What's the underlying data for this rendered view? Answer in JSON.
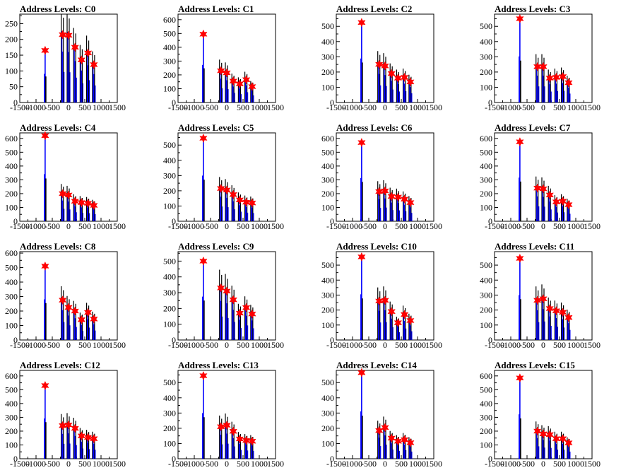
{
  "chart_data": [
    {
      "type": "bar",
      "title": "Address Levels: C0",
      "xlim": [
        -1500,
        1500
      ],
      "xticks": [
        -1500,
        -1000,
        -500,
        0,
        500,
        1000,
        1500
      ],
      "ylim": [
        0,
        280
      ],
      "yticks": [
        0,
        50,
        100,
        150,
        200,
        250
      ],
      "peaks": [
        {
          "x": -720,
          "y": 165
        },
        {
          "x": -180,
          "y": 215
        },
        {
          "x": 0,
          "y": 213
        },
        {
          "x": 200,
          "y": 175
        },
        {
          "x": 400,
          "y": 135
        },
        {
          "x": 600,
          "y": 157
        },
        {
          "x": 780,
          "y": 120
        }
      ]
    },
    {
      "type": "bar",
      "title": "Address Levels: C1",
      "xlim": [
        -1500,
        1500
      ],
      "xticks": [
        -1500,
        -1000,
        -500,
        0,
        500,
        1000,
        1500
      ],
      "ylim": [
        0,
        640
      ],
      "yticks": [
        0,
        100,
        200,
        300,
        400,
        500,
        600
      ],
      "peaks": [
        {
          "x": -720,
          "y": 495
        },
        {
          "x": -180,
          "y": 230
        },
        {
          "x": 0,
          "y": 215
        },
        {
          "x": 200,
          "y": 155
        },
        {
          "x": 400,
          "y": 135
        },
        {
          "x": 600,
          "y": 165
        },
        {
          "x": 780,
          "y": 115
        }
      ]
    },
    {
      "type": "bar",
      "title": "Address Levels: C2",
      "xlim": [
        -1500,
        1500
      ],
      "xticks": [
        -1500,
        -1000,
        -500,
        0,
        500,
        1000,
        1500
      ],
      "ylim": [
        0,
        580
      ],
      "yticks": [
        0,
        100,
        200,
        300,
        400,
        500
      ],
      "peaks": [
        {
          "x": -720,
          "y": 525
        },
        {
          "x": -180,
          "y": 250
        },
        {
          "x": 0,
          "y": 240
        },
        {
          "x": 200,
          "y": 190
        },
        {
          "x": 400,
          "y": 160
        },
        {
          "x": 600,
          "y": 165
        },
        {
          "x": 780,
          "y": 135
        }
      ]
    },
    {
      "type": "bar",
      "title": "Address Levels: C3",
      "xlim": [
        -1500,
        1500
      ],
      "xticks": [
        -1500,
        -1000,
        -500,
        0,
        500,
        1000,
        1500
      ],
      "ylim": [
        0,
        580
      ],
      "yticks": [
        0,
        100,
        200,
        300,
        400,
        500
      ],
      "peaks": [
        {
          "x": -720,
          "y": 550
        },
        {
          "x": -180,
          "y": 235
        },
        {
          "x": 0,
          "y": 235
        },
        {
          "x": 200,
          "y": 160
        },
        {
          "x": 400,
          "y": 165
        },
        {
          "x": 600,
          "y": 170
        },
        {
          "x": 780,
          "y": 130
        }
      ]
    },
    {
      "type": "bar",
      "title": "Address Levels: C4",
      "xlim": [
        -1500,
        1500
      ],
      "xticks": [
        -1500,
        -1000,
        -500,
        0,
        500,
        1000,
        1500
      ],
      "ylim": [
        0,
        640
      ],
      "yticks": [
        0,
        100,
        200,
        300,
        400,
        500,
        600
      ],
      "peaks": [
        {
          "x": -720,
          "y": 620
        },
        {
          "x": -180,
          "y": 200
        },
        {
          "x": 0,
          "y": 190
        },
        {
          "x": 200,
          "y": 145
        },
        {
          "x": 400,
          "y": 135
        },
        {
          "x": 600,
          "y": 130
        },
        {
          "x": 780,
          "y": 115
        }
      ]
    },
    {
      "type": "bar",
      "title": "Address Levels: C5",
      "xlim": [
        -1500,
        1500
      ],
      "xticks": [
        -1500,
        -1000,
        -500,
        0,
        500,
        1000,
        1500
      ],
      "ylim": [
        0,
        580
      ],
      "yticks": [
        0,
        100,
        200,
        300,
        400,
        500
      ],
      "peaks": [
        {
          "x": -720,
          "y": 545
        },
        {
          "x": -180,
          "y": 215
        },
        {
          "x": 0,
          "y": 205
        },
        {
          "x": 200,
          "y": 175
        },
        {
          "x": 400,
          "y": 140
        },
        {
          "x": 600,
          "y": 125
        },
        {
          "x": 780,
          "y": 120
        }
      ]
    },
    {
      "type": "bar",
      "title": "Address Levels: C6",
      "xlim": [
        -1500,
        1500
      ],
      "xticks": [
        -1500,
        -1000,
        -500,
        0,
        500,
        1000,
        1500
      ],
      "ylim": [
        0,
        640
      ],
      "yticks": [
        0,
        100,
        200,
        300,
        400,
        500,
        600
      ],
      "peaks": [
        {
          "x": -720,
          "y": 570
        },
        {
          "x": -180,
          "y": 215
        },
        {
          "x": 0,
          "y": 220
        },
        {
          "x": 200,
          "y": 180
        },
        {
          "x": 400,
          "y": 175
        },
        {
          "x": 600,
          "y": 160
        },
        {
          "x": 780,
          "y": 135
        }
      ]
    },
    {
      "type": "bar",
      "title": "Address Levels: C7",
      "xlim": [
        -1500,
        1500
      ],
      "xticks": [
        -1500,
        -1000,
        -500,
        0,
        500,
        1000,
        1500
      ],
      "ylim": [
        0,
        640
      ],
      "yticks": [
        0,
        100,
        200,
        300,
        400,
        500,
        600
      ],
      "peaks": [
        {
          "x": -720,
          "y": 575
        },
        {
          "x": -180,
          "y": 240
        },
        {
          "x": 0,
          "y": 235
        },
        {
          "x": 200,
          "y": 190
        },
        {
          "x": 400,
          "y": 140
        },
        {
          "x": 600,
          "y": 145
        },
        {
          "x": 780,
          "y": 120
        }
      ]
    },
    {
      "type": "bar",
      "title": "Address Levels: C8",
      "xlim": [
        -1500,
        1500
      ],
      "xticks": [
        -1500,
        -1000,
        -500,
        0,
        500,
        1000,
        1500
      ],
      "ylim": [
        0,
        610
      ],
      "yticks": [
        0,
        100,
        200,
        300,
        400,
        500,
        600
      ],
      "peaks": [
        {
          "x": -720,
          "y": 510
        },
        {
          "x": -180,
          "y": 275
        },
        {
          "x": 0,
          "y": 225
        },
        {
          "x": 200,
          "y": 200
        },
        {
          "x": 400,
          "y": 140
        },
        {
          "x": 600,
          "y": 190
        },
        {
          "x": 780,
          "y": 145
        }
      ]
    },
    {
      "type": "bar",
      "title": "Address Levels: C9",
      "xlim": [
        -1500,
        1500
      ],
      "xticks": [
        -1500,
        -1000,
        -500,
        0,
        500,
        1000,
        1500
      ],
      "ylim": [
        0,
        560
      ],
      "yticks": [
        0,
        100,
        200,
        300,
        400,
        500
      ],
      "peaks": [
        {
          "x": -720,
          "y": 500
        },
        {
          "x": -180,
          "y": 330
        },
        {
          "x": 0,
          "y": 310
        },
        {
          "x": 200,
          "y": 255
        },
        {
          "x": 400,
          "y": 170
        },
        {
          "x": 600,
          "y": 205
        },
        {
          "x": 780,
          "y": 165
        }
      ]
    },
    {
      "type": "bar",
      "title": "Address Levels: C10",
      "xlim": [
        -1500,
        1500
      ],
      "xticks": [
        -1500,
        -1000,
        -500,
        0,
        500,
        1000,
        1500
      ],
      "ylim": [
        0,
        590
      ],
      "yticks": [
        0,
        100,
        200,
        300,
        400,
        500
      ],
      "peaks": [
        {
          "x": -720,
          "y": 555
        },
        {
          "x": -180,
          "y": 260
        },
        {
          "x": 0,
          "y": 265
        },
        {
          "x": 200,
          "y": 190
        },
        {
          "x": 400,
          "y": 115
        },
        {
          "x": 600,
          "y": 170
        },
        {
          "x": 780,
          "y": 130
        }
      ]
    },
    {
      "type": "bar",
      "title": "Address Levels: C11",
      "xlim": [
        -1500,
        1500
      ],
      "xticks": [
        -1500,
        -1000,
        -500,
        0,
        500,
        1000,
        1500
      ],
      "ylim": [
        0,
        590
      ],
      "yticks": [
        0,
        100,
        200,
        300,
        400,
        500
      ],
      "peaks": [
        {
          "x": -720,
          "y": 545
        },
        {
          "x": -180,
          "y": 265
        },
        {
          "x": 0,
          "y": 275
        },
        {
          "x": 200,
          "y": 210
        },
        {
          "x": 400,
          "y": 195
        },
        {
          "x": 600,
          "y": 185
        },
        {
          "x": 780,
          "y": 150
        }
      ]
    },
    {
      "type": "bar",
      "title": "Address Levels: C12",
      "xlim": [
        -1500,
        1500
      ],
      "xticks": [
        -1500,
        -1000,
        -500,
        0,
        500,
        1000,
        1500
      ],
      "ylim": [
        0,
        640
      ],
      "yticks": [
        0,
        100,
        200,
        300,
        400,
        500,
        600
      ],
      "peaks": [
        {
          "x": -720,
          "y": 530
        },
        {
          "x": -180,
          "y": 240
        },
        {
          "x": 0,
          "y": 245
        },
        {
          "x": 200,
          "y": 220
        },
        {
          "x": 400,
          "y": 165
        },
        {
          "x": 600,
          "y": 155
        },
        {
          "x": 780,
          "y": 145
        }
      ]
    },
    {
      "type": "bar",
      "title": "Address Levels: C13",
      "xlim": [
        -1500,
        1500
      ],
      "xticks": [
        -1500,
        -1000,
        -500,
        0,
        500,
        1000,
        1500
      ],
      "ylim": [
        0,
        580
      ],
      "yticks": [
        0,
        100,
        200,
        300,
        400,
        500
      ],
      "peaks": [
        {
          "x": -720,
          "y": 545
        },
        {
          "x": -180,
          "y": 210
        },
        {
          "x": 0,
          "y": 220
        },
        {
          "x": 200,
          "y": 180
        },
        {
          "x": 400,
          "y": 130
        },
        {
          "x": 600,
          "y": 120
        },
        {
          "x": 780,
          "y": 115
        }
      ]
    },
    {
      "type": "bar",
      "title": "Address Levels: C14",
      "xlim": [
        -1500,
        1500
      ],
      "xticks": [
        -1500,
        -1000,
        -500,
        0,
        500,
        1000,
        1500
      ],
      "ylim": [
        0,
        580
      ],
      "yticks": [
        0,
        100,
        200,
        300,
        400,
        500
      ],
      "peaks": [
        {
          "x": -720,
          "y": 565
        },
        {
          "x": -180,
          "y": 185
        },
        {
          "x": 0,
          "y": 205
        },
        {
          "x": 200,
          "y": 135
        },
        {
          "x": 400,
          "y": 115
        },
        {
          "x": 600,
          "y": 125
        },
        {
          "x": 780,
          "y": 105
        }
      ]
    },
    {
      "type": "bar",
      "title": "Address Levels: C15",
      "xlim": [
        -1500,
        1500
      ],
      "xticks": [
        -1500,
        -1000,
        -500,
        0,
        500,
        1000,
        1500
      ],
      "ylim": [
        0,
        640
      ],
      "yticks": [
        0,
        100,
        200,
        300,
        400,
        500,
        600
      ],
      "peaks": [
        {
          "x": -720,
          "y": 585
        },
        {
          "x": -180,
          "y": 200
        },
        {
          "x": 0,
          "y": 180
        },
        {
          "x": 200,
          "y": 175
        },
        {
          "x": 400,
          "y": 145
        },
        {
          "x": 600,
          "y": 145
        },
        {
          "x": 780,
          "y": 115
        }
      ]
    }
  ],
  "colors": {
    "histogram_blue": "#0000ff",
    "histogram_black": "#000000",
    "marker_red": "#ff0000"
  },
  "marker_icon": "star-marker-icon"
}
